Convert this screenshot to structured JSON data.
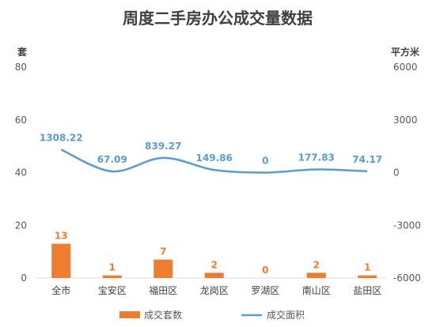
{
  "chart_data": {
    "type": "bar",
    "title": "周度二手房办公成交量数据",
    "y_left_unit": "套",
    "y_right_unit": "平方米",
    "y_left_ticks": [
      "80",
      "60",
      "40",
      "20",
      "0"
    ],
    "y_right_ticks": [
      "6000",
      "3000",
      "0",
      "-3000",
      "-6000"
    ],
    "ylim_left": [
      0,
      80
    ],
    "ylim_right": [
      -6000,
      6000
    ],
    "categories": [
      "全市",
      "宝安区",
      "福田区",
      "龙岗区",
      "罗湖区",
      "南山区",
      "盐田区"
    ],
    "series": [
      {
        "name": "成交套数",
        "type": "bar",
        "axis": "left",
        "color": "#ed7d31",
        "values": [
          13,
          1,
          7,
          2,
          0,
          2,
          1
        ],
        "labels": [
          "13",
          "1",
          "7",
          "2",
          "0",
          "2",
          "1"
        ]
      },
      {
        "name": "成交面积",
        "type": "line",
        "axis": "right",
        "color": "#5b9bd5",
        "values": [
          1308.22,
          67.09,
          839.27,
          149.86,
          0,
          177.83,
          74.17
        ],
        "labels": [
          "1308.22",
          "67.09",
          "839.27",
          "149.86",
          "0",
          "177.83",
          "74.17"
        ]
      }
    ],
    "legend": [
      "成交套数",
      "成交面积"
    ],
    "legend_position": "bottom",
    "grid": false
  }
}
